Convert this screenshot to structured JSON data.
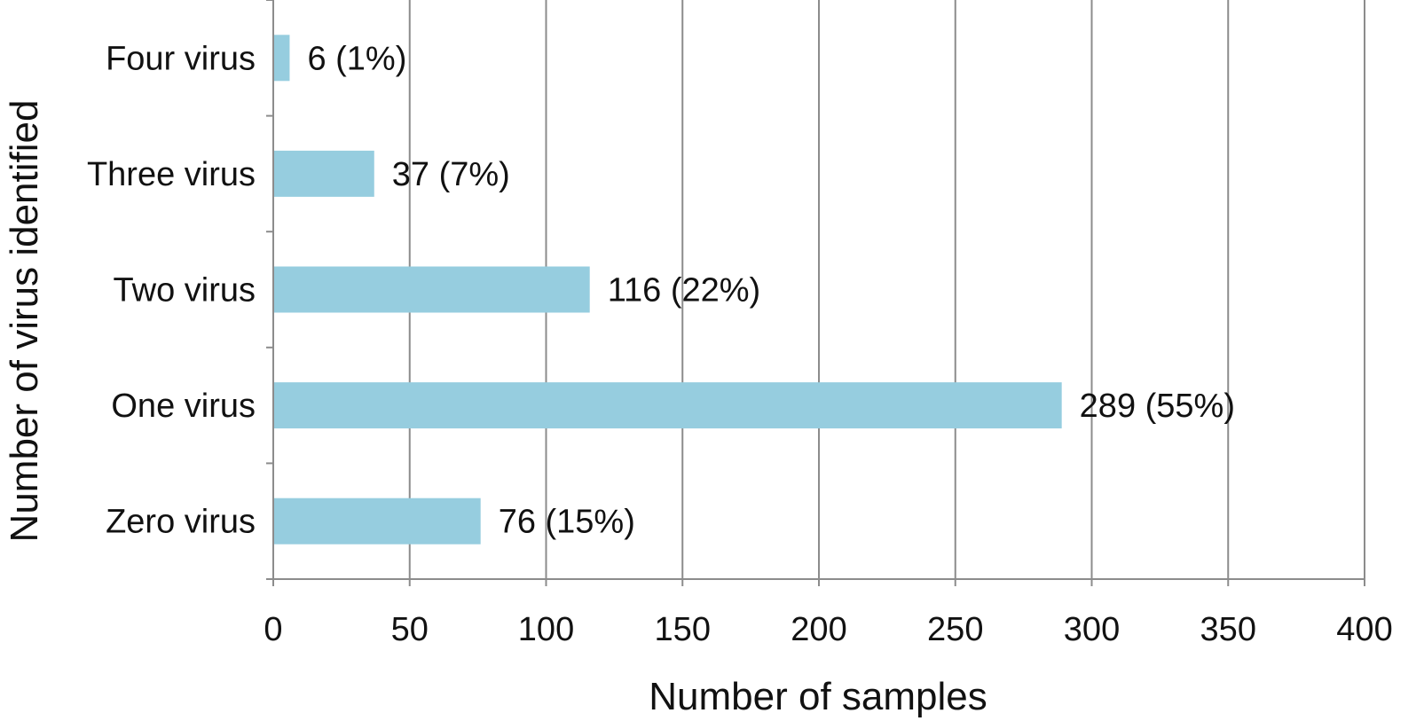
{
  "chart_data": {
    "type": "bar",
    "orientation": "horizontal",
    "categories": [
      "Zero virus",
      "One virus",
      "Two virus",
      "Three virus",
      "Four virus"
    ],
    "values": [
      76,
      289,
      116,
      37,
      6
    ],
    "data_labels": [
      "76 (15%)",
      "289 (55%)",
      "116 (22%)",
      "37 (7%)",
      "6 (1%)"
    ],
    "xlabel": "Number of samples",
    "ylabel": "Number of virus identified",
    "xlim": [
      0,
      400
    ],
    "xticks": [
      0,
      50,
      100,
      150,
      200,
      250,
      300,
      350,
      400
    ],
    "xtick_labels": [
      "0",
      "50",
      "100",
      "150",
      "200",
      "250",
      "300",
      "350",
      "400"
    ],
    "grid": "vertical",
    "legend": "none",
    "bar_color": "#96cddf",
    "grid_color": "#8c8c8c",
    "axis_color": "#8c8c8c"
  }
}
